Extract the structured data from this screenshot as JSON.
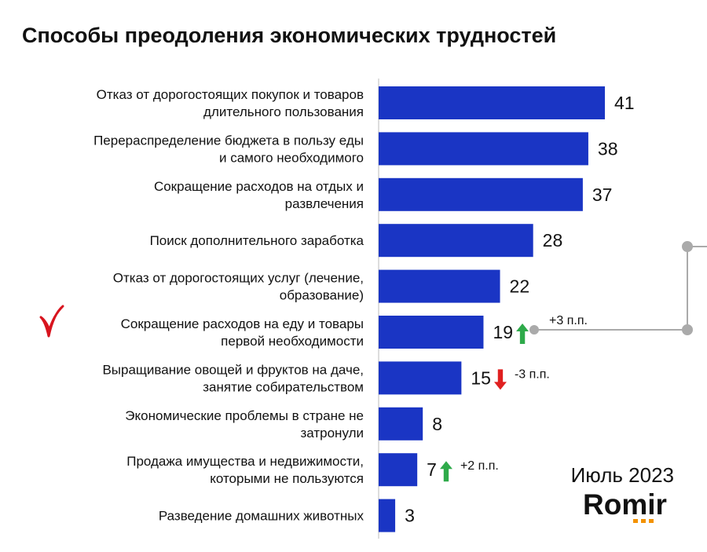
{
  "chart_data": {
    "type": "bar",
    "orientation": "horizontal",
    "title": "Способы преодоления экономических трудностей",
    "categories": [
      "Отказ от дорогостоящих покупок и товаров\nдлительного пользования",
      "Перераспределение бюджета в пользу еды\nи самого необходимого",
      "Сокращение расходов на отдых и\nразвлечения",
      "Поиск дополнительного заработка",
      "Отказ от дорогостоящих услуг (лечение,\nобразование)",
      "Сокращение расходов на еду и товары\nпервой необходимости",
      "Выращивание овощей и фруктов на даче,\nзанятие собирательством",
      "Экономические проблемы в стране не\nзатронули",
      "Продажа имущества и недвижимости,\nкоторыми не пользуются",
      "Разведение домашних животных"
    ],
    "values": [
      41,
      38,
      37,
      28,
      22,
      19,
      15,
      8,
      7,
      3
    ],
    "color": "#1a35c4",
    "xlim": [
      0,
      41
    ],
    "annotations": [
      {
        "index": 5,
        "text": "+3 п.п.",
        "direction": "up",
        "color": "#2eaa4a"
      },
      {
        "index": 6,
        "text": "-3 п.п.",
        "direction": "down",
        "color": "#e02020"
      },
      {
        "index": 8,
        "text": "+2 п.п.",
        "direction": "up",
        "color": "#2eaa4a"
      }
    ],
    "date": "Июль 2023",
    "brand": "Romir"
  }
}
